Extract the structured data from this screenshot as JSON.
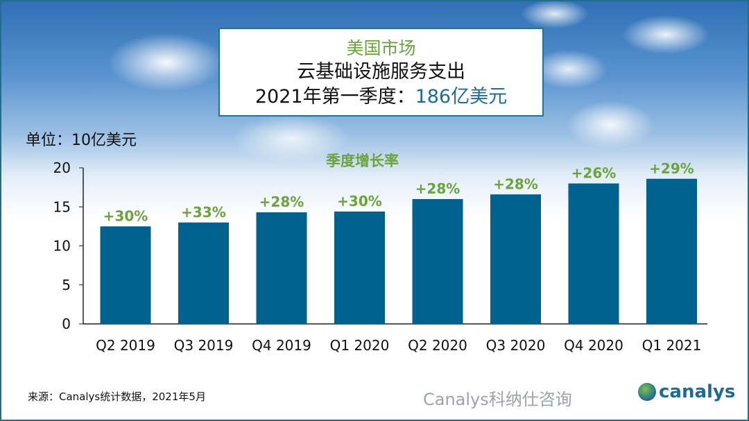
{
  "title_box": {
    "line1": "美国市场",
    "line2": "云基础设施服务支出",
    "line3_prefix": "2021年第一季度：",
    "line3_highlight": "186亿美元"
  },
  "unit_label": "单位：10亿美元",
  "source": "来源：Canalys统计数据，2021年5月",
  "logo": "canalys",
  "watermark": "Canalys科纳仕咨询",
  "colors": {
    "bar": "#00628f",
    "growth_label": "#6aa43a",
    "title_highlight": "#1a6f9a"
  },
  "chart_data": {
    "type": "bar",
    "title": "",
    "ylabel": "单位：10亿美元",
    "annotation_title": "季度增长率",
    "categories": [
      "Q2 2019",
      "Q3 2019",
      "Q4 2019",
      "Q1 2020",
      "Q2 2020",
      "Q3 2020",
      "Q4 2020",
      "Q1 2021"
    ],
    "values": [
      12.5,
      13.0,
      14.3,
      14.4,
      16.0,
      16.6,
      18.0,
      18.6
    ],
    "data_labels": [
      "+30%",
      "+33%",
      "+28%",
      "+30%",
      "+28%",
      "+28%",
      "+26%",
      "+29%"
    ],
    "ylim": [
      0,
      20
    ],
    "yticks": [
      0,
      5,
      10,
      15,
      20
    ],
    "grid": false,
    "legend": "none"
  }
}
